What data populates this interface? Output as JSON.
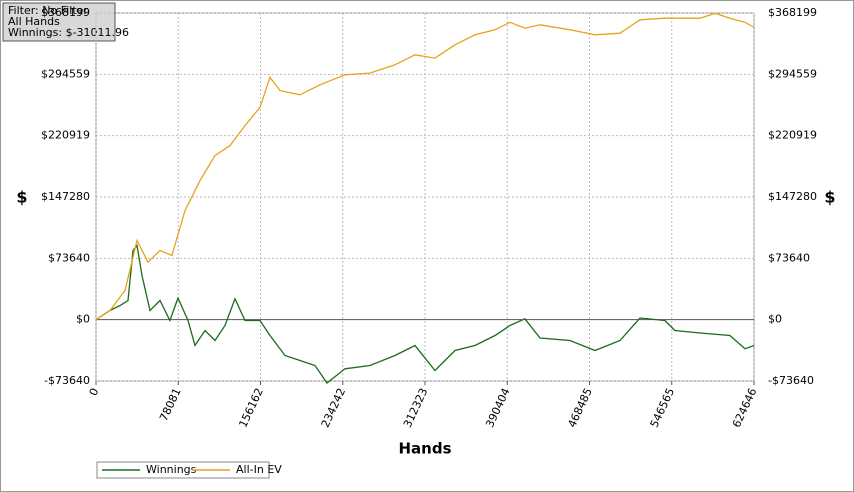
{
  "chart_data": {
    "type": "line",
    "info": [
      "Filter: No Filter",
      "All Hands",
      "Winnings: $-31011.96"
    ],
    "xlabel": "Hands",
    "ylabel": "$",
    "xlim": [
      0,
      624646
    ],
    "xticks": [
      0,
      78081,
      156162,
      234242,
      312323,
      390404,
      468485,
      546565,
      624646
    ],
    "ylim": [
      -73640,
      368199
    ],
    "yticks": [
      {
        "value": -73640,
        "label": "-$73640"
      },
      {
        "value": 0,
        "label": "$0"
      },
      {
        "value": 73640,
        "label": "$73640"
      },
      {
        "value": 147280,
        "label": "$147280"
      },
      {
        "value": 220919,
        "label": "$220919"
      },
      {
        "value": 294559,
        "label": "$294559"
      },
      {
        "value": 368199,
        "label": "$368199"
      }
    ],
    "grid": true,
    "series": [
      {
        "name": "Winnings",
        "color": "#1a6b1a",
        "x": [
          0,
          13300,
          22800,
          30400,
          35100,
          38900,
          43700,
          51300,
          60800,
          70200,
          77800,
          87300,
          94000,
          103500,
          113000,
          122500,
          132000,
          141400,
          155700,
          165200,
          179400,
          193700,
          207900,
          219300,
          236400,
          260100,
          283800,
          302800,
          321800,
          340800,
          359800,
          378800,
          393000,
          407200,
          421500,
          450000,
          473700,
          497400,
          516400,
          540100,
          549600,
          573500,
          601800,
          616100,
          624646
        ],
        "values": [
          0,
          11000,
          17000,
          23000,
          83000,
          89000,
          53000,
          11000,
          23000,
          -1000,
          26000,
          -1000,
          -31000,
          -13000,
          -25000,
          -7000,
          25000,
          -1000,
          -1000,
          -19000,
          -43000,
          -49000,
          -55000,
          -76000,
          -59000,
          -55000,
          -43000,
          -31000,
          -61000,
          -37000,
          -31000,
          -19000,
          -7000,
          1000,
          -22000,
          -25000,
          -37000,
          -25000,
          2000,
          -1000,
          -13000,
          -16000,
          -19000,
          -35000,
          -31012
        ]
      },
      {
        "name": "All-In EV",
        "color": "#e8a21c",
        "x": [
          0,
          13300,
          27500,
          38900,
          49400,
          60800,
          72100,
          84500,
          98700,
          113000,
          127200,
          141400,
          155700,
          165200,
          174700,
          193700,
          212600,
          236400,
          260100,
          283800,
          302800,
          321800,
          340800,
          359800,
          378800,
          393000,
          407200,
          421500,
          450000,
          473700,
          497400,
          516400,
          540100,
          573500,
          587800,
          601800,
          616100,
          624646
        ],
        "values": [
          0,
          11000,
          35000,
          95000,
          69000,
          83000,
          77000,
          131000,
          167000,
          197000,
          209000,
          233000,
          255000,
          291000,
          275000,
          270000,
          282000,
          294000,
          296000,
          306000,
          318000,
          314000,
          330000,
          342000,
          348000,
          357000,
          350000,
          354000,
          348000,
          342000,
          344000,
          360000,
          362000,
          362000,
          368000,
          362000,
          357000,
          351000
        ]
      }
    ]
  }
}
